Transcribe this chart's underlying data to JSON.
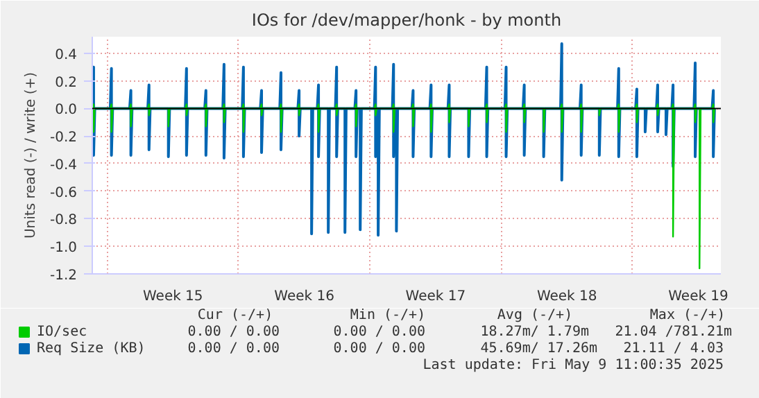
{
  "chart_data": {
    "type": "line",
    "title": "IOs for /dev/mapper/honk - by month",
    "ylabel": "Units read (-) / write (+)",
    "x": [
      "2025-04-06T05:00",
      "2025-04-06T06:30",
      "2025-04-06T06:30",
      "2025-04-06T08:00",
      "2025-04-07T03:50",
      "2025-04-07T05:20",
      "2025-04-07T05:20",
      "2025-04-07T06:50",
      "2025-04-08T04:40",
      "2025-04-08T06:10",
      "2025-04-08T06:10",
      "2025-04-08T07:40",
      "2025-04-09T03:50",
      "2025-04-09T05:20",
      "2025-04-09T05:20",
      "2025-04-09T06:50",
      "2025-04-10T04:40",
      "2025-04-10T06:10",
      "2025-04-10T06:10",
      "2025-04-10T07:40",
      "2025-04-11T03:50",
      "2025-04-11T05:20",
      "2025-04-11T05:20",
      "2025-04-11T06:50",
      "2025-04-12T04:40",
      "2025-04-12T06:10",
      "2025-04-12T06:10",
      "2025-04-12T07:40",
      "2025-04-13T03:50",
      "2025-04-13T05:20",
      "2025-04-13T05:20",
      "2025-04-13T06:50",
      "2025-04-14T04:40",
      "2025-04-14T06:10",
      "2025-04-14T06:10",
      "2025-04-14T07:40",
      "2025-04-15T03:50",
      "2025-04-15T05:20",
      "2025-04-15T05:20",
      "2025-04-15T06:50",
      "2025-04-16T04:40",
      "2025-04-16T06:10",
      "2025-04-16T06:10",
      "2025-04-16T07:40",
      "2025-04-17T03:50",
      "2025-04-17T05:20",
      "2025-04-17T05:20",
      "2025-04-17T06:50",
      "2025-04-17T19:50",
      "2025-04-17T21:20",
      "2025-04-17T21:20",
      "2025-04-17T22:50",
      "2025-04-18T04:40",
      "2025-04-18T06:10",
      "2025-04-18T06:10",
      "2025-04-18T07:40",
      "2025-04-18T17:10",
      "2025-04-18T18:40",
      "2025-04-18T18:40",
      "2025-04-18T20:10",
      "2025-04-19T03:50",
      "2025-04-19T05:20",
      "2025-04-19T05:20",
      "2025-04-19T06:50",
      "2025-04-19T14:30",
      "2025-04-19T16:00",
      "2025-04-19T16:00",
      "2025-04-19T17:30",
      "2025-04-20T04:40",
      "2025-04-20T06:10",
      "2025-04-20T06:10",
      "2025-04-20T07:40",
      "2025-04-20T10:00",
      "2025-04-20T11:30",
      "2025-04-20T11:30",
      "2025-04-20T13:00",
      "2025-04-21T05:40",
      "2025-04-21T07:10",
      "2025-04-21T07:10",
      "2025-04-21T08:40",
      "2025-04-21T09:00",
      "2025-04-21T10:30",
      "2025-04-21T10:30",
      "2025-04-21T12:00",
      "2025-04-22T04:40",
      "2025-04-22T06:10",
      "2025-04-22T06:10",
      "2025-04-22T07:40",
      "2025-04-22T08:20",
      "2025-04-22T09:50",
      "2025-04-22T09:50",
      "2025-04-22T11:20",
      "2025-04-23T05:40",
      "2025-04-23T07:10",
      "2025-04-23T07:10",
      "2025-04-23T08:40",
      "2025-04-24T04:40",
      "2025-04-24T06:10",
      "2025-04-24T06:10",
      "2025-04-24T07:40",
      "2025-04-25T03:50",
      "2025-04-25T05:20",
      "2025-04-25T05:20",
      "2025-04-25T06:50",
      "2025-04-26T04:40",
      "2025-04-26T06:10",
      "2025-04-26T06:10",
      "2025-04-26T07:40",
      "2025-04-27T03:50",
      "2025-04-27T05:20",
      "2025-04-27T05:20",
      "2025-04-27T06:50",
      "2025-04-28T04:40",
      "2025-04-28T06:10",
      "2025-04-28T06:10",
      "2025-04-28T07:40",
      "2025-04-29T03:50",
      "2025-04-29T05:20",
      "2025-04-29T05:20",
      "2025-04-29T06:50",
      "2025-04-30T04:40",
      "2025-04-30T06:10",
      "2025-04-30T06:10",
      "2025-04-30T07:40",
      "2025-05-01T03:50",
      "2025-05-01T05:20",
      "2025-05-01T05:20",
      "2025-05-01T06:50",
      "2025-05-02T04:40",
      "2025-05-02T06:10",
      "2025-05-02T06:10",
      "2025-05-02T07:40",
      "2025-05-03T03:50",
      "2025-05-03T05:20",
      "2025-05-03T05:20",
      "2025-05-03T06:50",
      "2025-05-04T04:40",
      "2025-05-04T06:10",
      "2025-05-04T06:10",
      "2025-05-04T07:40",
      "2025-05-05T03:50",
      "2025-05-05T05:20",
      "2025-05-05T05:20",
      "2025-05-05T06:50",
      "2025-05-05T14:30",
      "2025-05-05T16:00",
      "2025-05-05T16:00",
      "2025-05-05T17:30",
      "2025-05-06T06:30",
      "2025-05-06T08:00",
      "2025-05-06T08:00",
      "2025-05-06T09:30",
      "2025-05-06T17:10",
      "2025-05-06T18:40",
      "2025-05-06T18:40",
      "2025-05-06T20:10",
      "2025-05-07T02:10",
      "2025-05-07T03:40",
      "2025-05-07T03:40",
      "2025-05-07T05:10",
      "2025-05-08T06:30",
      "2025-05-08T08:00",
      "2025-05-08T08:00",
      "2025-05-08T09:30",
      "2025-05-08T12:00",
      "2025-05-08T13:30",
      "2025-05-08T13:30",
      "2025-05-08T15:00",
      "2025-05-09T05:40",
      "2025-05-09T07:10",
      "2025-05-09T07:10",
      "2025-05-09T08:40"
    ],
    "series": [
      {
        "name": "IO/sec",
        "color": "#00cc00",
        "values": [
          0,
          0.03,
          -0.17,
          0,
          0,
          0.03,
          -0.17,
          0,
          0,
          0.03,
          -0.13,
          0,
          0,
          0.03,
          -0.05,
          0,
          0,
          0,
          -0.13,
          0,
          0,
          0.03,
          -0.05,
          0,
          0,
          0.03,
          -0.13,
          0,
          0,
          0.03,
          -0.1,
          0,
          0,
          0.03,
          -0.17,
          0,
          0,
          0.03,
          -0.05,
          0,
          0,
          0.03,
          -0.17,
          0,
          0,
          0.03,
          -0.05,
          0,
          0,
          0,
          0,
          0,
          0,
          0.03,
          -0.17,
          0,
          0,
          0,
          0,
          0,
          0,
          0.03,
          -0.05,
          0,
          0,
          0,
          0,
          0,
          0,
          0.03,
          -0.13,
          0,
          0,
          0,
          0,
          0,
          0,
          0.03,
          -0.05,
          0,
          0,
          0,
          0,
          0,
          0,
          0.03,
          -0.17,
          0,
          0,
          0,
          0,
          0,
          0,
          0.03,
          -0.13,
          0,
          0,
          0.03,
          -0.17,
          0,
          0,
          0.03,
          -0.1,
          0,
          0,
          0,
          -0.13,
          0,
          0,
          0.03,
          -0.1,
          0,
          0,
          0.03,
          -0.17,
          0,
          0,
          0.03,
          -0.1,
          0,
          0,
          0,
          -0.17,
          0,
          0,
          0.03,
          -0.17,
          0,
          0,
          0.03,
          -0.17,
          0,
          0,
          0,
          -0.05,
          0,
          0,
          0.03,
          -0.17,
          0,
          0,
          0.03,
          -0.1,
          0,
          0,
          0,
          0,
          0,
          0,
          0.03,
          -0.05,
          0,
          0,
          0,
          0,
          0,
          0,
          0.03,
          -0.93,
          0,
          0,
          0.03,
          -0.1,
          0,
          0,
          0,
          -1.16,
          0,
          0,
          0.03,
          -0.1,
          0
        ]
      },
      {
        "name": "Req Size (KB)",
        "color": "#0066b3",
        "values": [
          0,
          0.3,
          -0.34,
          0,
          0,
          0.29,
          -0.34,
          0,
          0,
          0.13,
          -0.34,
          0,
          0,
          0.17,
          -0.3,
          0,
          0,
          0,
          -0.35,
          0,
          0,
          0.29,
          -0.34,
          0,
          0,
          0.13,
          -0.34,
          0,
          0,
          0.32,
          -0.36,
          0,
          0,
          0.3,
          -0.35,
          0,
          0,
          0.13,
          -0.32,
          0,
          0,
          0.26,
          -0.3,
          0,
          0,
          0.13,
          -0.2,
          0,
          0,
          0,
          -0.91,
          0,
          0,
          0.17,
          -0.35,
          0,
          0,
          0,
          -0.9,
          0,
          0,
          0.3,
          -0.35,
          0,
          0,
          0,
          -0.9,
          0,
          0,
          0.13,
          -0.35,
          0,
          0,
          0,
          -0.88,
          0,
          0,
          0.3,
          -0.35,
          0,
          0,
          0,
          -0.92,
          0,
          0,
          0.32,
          -0.35,
          0,
          0,
          0,
          -0.89,
          0,
          0,
          0.13,
          -0.35,
          0,
          0,
          0.17,
          -0.35,
          0,
          0,
          0.17,
          -0.35,
          0,
          0,
          0,
          -0.35,
          0,
          0,
          0.3,
          -0.35,
          0,
          0,
          0.3,
          -0.35,
          0,
          0,
          0.17,
          -0.34,
          0,
          0,
          0,
          -0.35,
          0,
          0,
          0.47,
          -0.52,
          0,
          0,
          0.17,
          -0.34,
          0,
          0,
          0,
          -0.34,
          0,
          0,
          0.29,
          -0.35,
          0,
          0,
          0.14,
          -0.35,
          0,
          0,
          0,
          -0.17,
          0,
          0,
          0.17,
          -0.17,
          0,
          0,
          0,
          -0.19,
          0,
          0,
          0.17,
          -0.42,
          0,
          0,
          0.33,
          -0.35,
          0,
          0,
          0,
          0,
          0,
          0,
          0.13,
          -0.35,
          0
        ]
      }
    ],
    "xlim": [
      "2025-04-06T04:48",
      "2025-05-09T16:48"
    ],
    "xticks": [
      {
        "value": "2025-04-07",
        "label": null
      },
      {
        "value": "2025-04-10T12:00",
        "label": "Week 15"
      },
      {
        "value": "2025-04-14",
        "label": null
      },
      {
        "value": "2025-04-17T12:00",
        "label": "Week 16"
      },
      {
        "value": "2025-04-21",
        "label": null
      },
      {
        "value": "2025-04-24T12:00",
        "label": "Week 17"
      },
      {
        "value": "2025-04-28",
        "label": null
      },
      {
        "value": "2025-05-01T12:00",
        "label": "Week 18"
      },
      {
        "value": "2025-05-05",
        "label": null
      },
      {
        "value": "2025-05-08T12:00",
        "label": "Week 19"
      }
    ],
    "ylim": [
      -1.2,
      0.52
    ],
    "yticks": [
      {
        "value": -1.2,
        "label": "-1.2"
      },
      {
        "value": -1.0,
        "label": "-1.0"
      },
      {
        "value": -0.8,
        "label": "-0.8"
      },
      {
        "value": -0.6,
        "label": "-0.6"
      },
      {
        "value": -0.4,
        "label": "-0.4"
      },
      {
        "value": -0.2,
        "label": "-0.2"
      },
      {
        "value": 0,
        "label": "0.0"
      },
      {
        "value": 0.2,
        "label": "0.2"
      },
      {
        "value": 0.4,
        "label": "0.4"
      }
    ],
    "grid": true,
    "legend": "bottom",
    "ref_lines": [
      {
        "axis": "y",
        "value": 0,
        "color": "#000000"
      }
    ],
    "annotations": [
      "Cur (-/+)",
      "Min (-/+)",
      "Avg (-/+)",
      "Max (-/+)",
      "0.00 /  0.00",
      "0.00 /  0.00",
      "18.27m/  1.79m",
      "21.04 /781.21m",
      "0.00 /  0.00",
      "0.00 /  0.00",
      "45.69m/ 17.26m",
      "21.11 /  4.03",
      "Last update: Fri May  9 11:00:35 2025"
    ]
  }
}
